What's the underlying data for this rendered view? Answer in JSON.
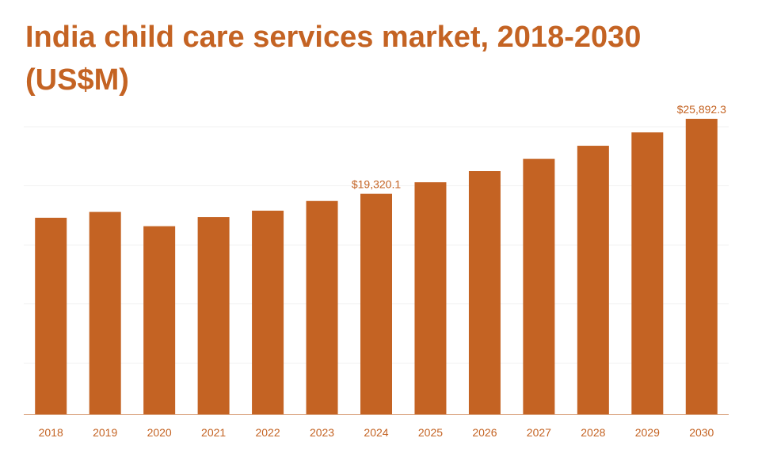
{
  "chart_data": {
    "type": "bar",
    "title": "India child care services market, 2018-2030 (US$M)",
    "xlabel": "",
    "ylabel": "",
    "ylim": [
      0,
      25892.3
    ],
    "grid": true,
    "categories": [
      "2018",
      "2019",
      "2020",
      "2021",
      "2022",
      "2023",
      "2024",
      "2025",
      "2026",
      "2027",
      "2028",
      "2029",
      "2030"
    ],
    "values": [
      17220,
      17730,
      16480,
      17280,
      17840,
      18690,
      19320.1,
      20330,
      21310,
      22380,
      23530,
      24700,
      25892.3
    ],
    "data_labels": [
      {
        "category": "2024",
        "text": "$19,320.1"
      },
      {
        "category": "2030",
        "text": "$25,892.3"
      }
    ]
  },
  "colors": {
    "bar": "#c46323",
    "text": "#c46323",
    "grid": "#f1f1f1",
    "baseline": "#d9a27e"
  }
}
